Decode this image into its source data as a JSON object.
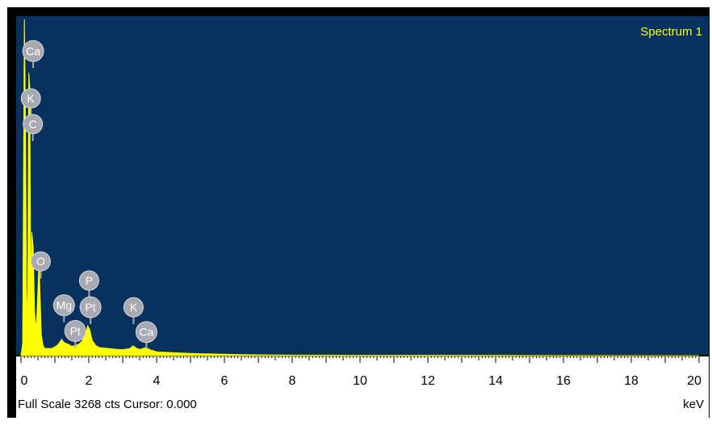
{
  "chart_data": {
    "type": "area",
    "title": "Spectrum 1",
    "xlabel": "keV",
    "xlim": [
      0,
      20
    ],
    "ylim": [
      0,
      3268
    ],
    "xticks": [
      0,
      2,
      4,
      6,
      8,
      10,
      12,
      14,
      16,
      18,
      20
    ],
    "x": [
      0.0,
      0.05,
      0.1,
      0.13,
      0.17,
      0.2,
      0.23,
      0.26,
      0.29,
      0.32,
      0.36,
      0.4,
      0.45,
      0.5,
      0.53,
      0.56,
      0.6,
      0.65,
      0.7,
      0.8,
      0.9,
      1.0,
      1.1,
      1.2,
      1.26,
      1.32,
      1.4,
      1.5,
      1.6,
      1.7,
      1.8,
      1.9,
      1.97,
      2.03,
      2.1,
      2.2,
      2.3,
      2.4,
      2.6,
      2.8,
      3.0,
      3.2,
      3.31,
      3.4,
      3.5,
      3.6,
      3.69,
      3.8,
      4.0,
      4.5,
      5.0,
      5.5,
      6.0,
      6.5,
      7.0,
      8.0,
      10.0,
      15.0,
      20.0
    ],
    "y": [
      0,
      120,
      3268,
      2300,
      280,
      600,
      2750,
      2600,
      500,
      1200,
      1050,
      420,
      240,
      640,
      920,
      620,
      200,
      100,
      70,
      70,
      70,
      85,
      110,
      160,
      130,
      120,
      110,
      90,
      100,
      110,
      140,
      210,
      290,
      250,
      150,
      100,
      80,
      75,
      70,
      62,
      58,
      68,
      95,
      72,
      60,
      70,
      78,
      58,
      38,
      28,
      22,
      17,
      13,
      10,
      8,
      5,
      4,
      2,
      0
    ],
    "peak_labels": [
      {
        "text": "Ca",
        "x": 0.36,
        "y": 2960
      },
      {
        "text": "K",
        "x": 0.29,
        "y": 2500
      },
      {
        "text": "C",
        "x": 0.35,
        "y": 2250
      },
      {
        "text": "O",
        "x": 0.58,
        "y": 915
      },
      {
        "text": "P",
        "x": 2.01,
        "y": 730
      },
      {
        "text": "Mg",
        "x": 1.27,
        "y": 490
      },
      {
        "text": "Pt",
        "x": 2.05,
        "y": 470
      },
      {
        "text": "Pt",
        "x": 1.6,
        "y": 240
      },
      {
        "text": "K",
        "x": 3.32,
        "y": 470
      },
      {
        "text": "Ca",
        "x": 3.7,
        "y": 230
      }
    ],
    "colors": {
      "background": "#07325f",
      "spectrum": "#ffff00",
      "label_circle": "#a9a9b1",
      "axis_panel": "#ffffff",
      "frame": "#000000"
    }
  },
  "status": {
    "text": "Full Scale 3268 cts Cursor: 0.000"
  }
}
